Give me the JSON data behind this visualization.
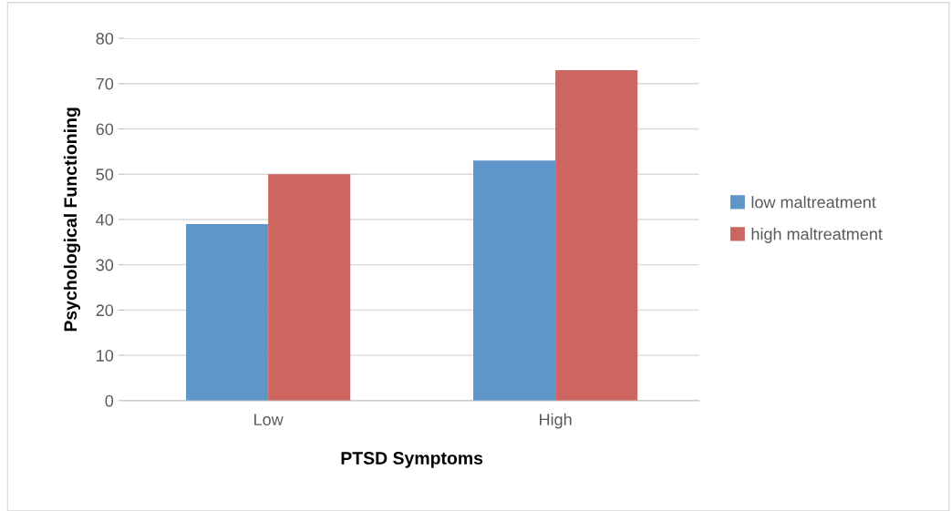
{
  "chart_data": {
    "type": "bar",
    "xlabel": "PTSD Symptoms",
    "ylabel": "Psychological Functioning",
    "categories": [
      "Low",
      "High"
    ],
    "series": [
      {
        "name": "low maltreatment",
        "color": "#5f96c9",
        "values": [
          39,
          53
        ]
      },
      {
        "name": "high maltreatment",
        "color": "#cd6660",
        "values": [
          50,
          73
        ]
      }
    ],
    "ylim": [
      0,
      80
    ],
    "yticks": [
      0,
      10,
      20,
      30,
      40,
      50,
      60,
      70,
      80
    ],
    "grid": "y",
    "legend": "right"
  }
}
